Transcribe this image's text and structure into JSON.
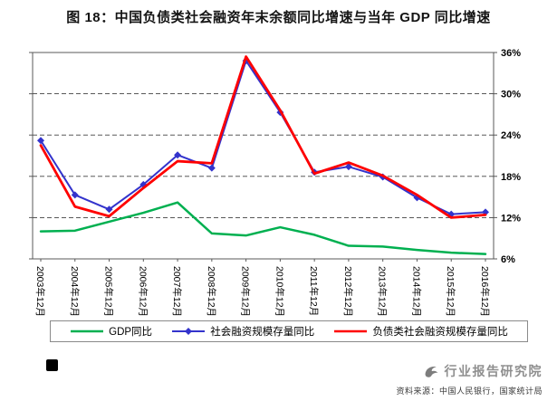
{
  "title": "图 18：中国负债类社会融资年末余额同比增速与当年 GDP 同比增速",
  "chart_data": {
    "type": "line",
    "title": "中国负债类社会融资年末余额同比增速与当年 GDP 同比增速",
    "categories": [
      "2003年12月",
      "2004年12月",
      "2005年12月",
      "2006年12月",
      "2007年12月",
      "2008年12月",
      "2009年12月",
      "2010年12月",
      "2011年12月",
      "2012年12月",
      "2013年12月",
      "2014年12月",
      "2015年12月",
      "2016年12月"
    ],
    "series": [
      {
        "name": "GDP同比",
        "color": "#00B050",
        "marker": "none",
        "width": 2.5,
        "values": [
          10.0,
          10.1,
          11.4,
          12.7,
          14.2,
          9.7,
          9.4,
          10.6,
          9.5,
          7.9,
          7.8,
          7.3,
          6.9,
          6.7
        ]
      },
      {
        "name": "社会融资规模存量同比",
        "color": "#3333CC",
        "marker": "diamond",
        "width": 2,
        "values": [
          23.2,
          15.3,
          13.2,
          16.8,
          21.1,
          19.2,
          34.8,
          27.3,
          18.6,
          19.4,
          17.9,
          14.9,
          12.5,
          12.8
        ]
      },
      {
        "name": "负债类社会融资规模存量同比",
        "color": "#FF0000",
        "marker": "none",
        "width": 2.8,
        "values": [
          22.5,
          13.6,
          12.2,
          16.3,
          20.2,
          19.9,
          35.4,
          27.6,
          18.4,
          20.0,
          18.1,
          15.3,
          12.0,
          12.4
        ]
      }
    ],
    "ylim": [
      6,
      36
    ],
    "yticks": [
      6,
      12,
      18,
      24,
      30,
      36
    ],
    "ytick_format": "{v}%",
    "ytick_side": "right",
    "grid": "dashed-horizontal",
    "legend_position": "bottom",
    "xlabel": "",
    "ylabel": ""
  },
  "footer": {
    "brand": "行业报告研究院",
    "source": "资料来源：中国人民银行，国家统计局"
  }
}
